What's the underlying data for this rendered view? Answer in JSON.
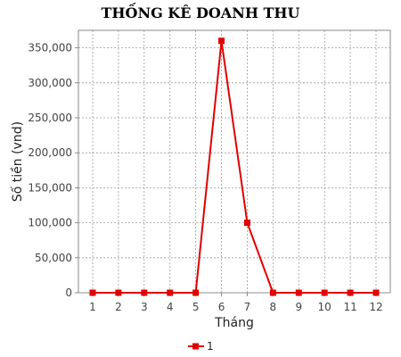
{
  "chart_data": {
    "type": "line",
    "title": "THỐNG KÊ DOANH THU",
    "xlabel": "Tháng",
    "ylabel": "Số tiền (vnd)",
    "categories": [
      "1",
      "2",
      "3",
      "4",
      "5",
      "6",
      "7",
      "8",
      "9",
      "10",
      "11",
      "12"
    ],
    "series": [
      {
        "name": "1",
        "color": "#e00000",
        "values": [
          0,
          0,
          0,
          0,
          0,
          360000,
          100000,
          0,
          0,
          0,
          0,
          0
        ]
      }
    ],
    "y_ticks": [
      "0",
      "50,000",
      "100,000",
      "150,000",
      "200,000",
      "250,000",
      "300,000",
      "350,000"
    ],
    "ylim": [
      0,
      375000
    ],
    "grid": true,
    "legend_position": "bottom-center"
  }
}
